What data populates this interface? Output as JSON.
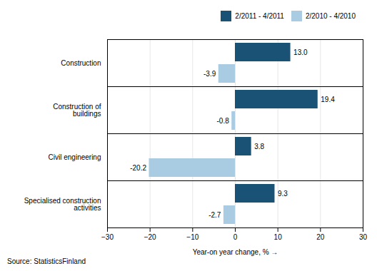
{
  "chart_data": {
    "type": "bar",
    "orientation": "horizontal",
    "categories": [
      "Construction",
      "Construction of\nbuildings",
      "Civil engineering",
      "Specialised construction\nactivities"
    ],
    "series": [
      {
        "name": "2/2011 - 4/2011",
        "color": "#1a5276",
        "values": [
          13.0,
          19.4,
          3.8,
          9.3
        ],
        "value_labels": [
          "13.0",
          "19.4",
          "3.8",
          "9.3"
        ]
      },
      {
        "name": "2/2010 - 4/2010",
        "color": "#a9cce3",
        "values": [
          -3.9,
          -0.8,
          -20.2,
          -2.7
        ],
        "value_labels": [
          "-3.9",
          "-0.8",
          "-20.2",
          "-2.7"
        ]
      }
    ],
    "xlabel": "Year-on year change, %",
    "xlim": [
      -30,
      30
    ],
    "xticks": [
      -30,
      -20,
      -10,
      0,
      10,
      20,
      30
    ],
    "grid": true,
    "legend": "right",
    "data_labels": true,
    "annotations": [
      "Source: StatisticsFinland"
    ]
  }
}
